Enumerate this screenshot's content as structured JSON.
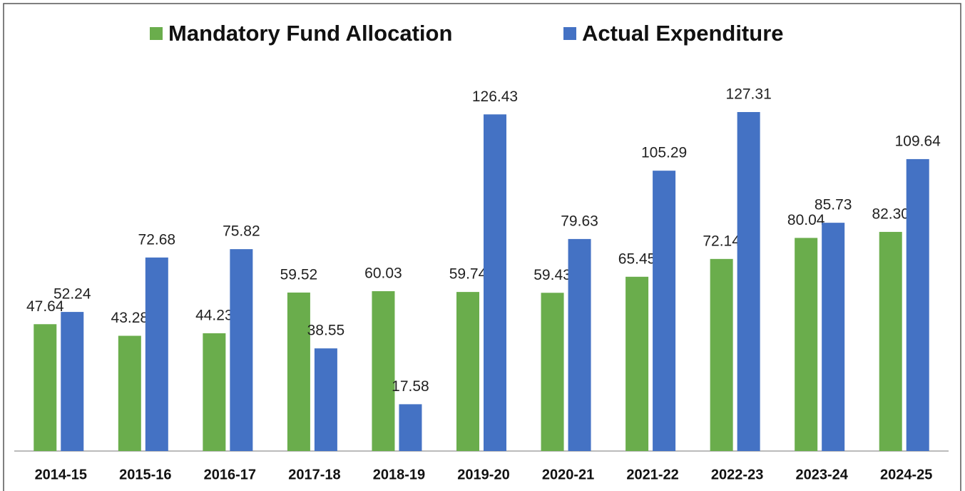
{
  "chart_data": {
    "type": "bar",
    "categories": [
      "2014-15",
      "2015-16",
      "2016-17",
      "2017-18",
      "2018-19",
      "2019-20",
      "2020-21",
      "2021-22",
      "2022-23",
      "2023-24",
      "2024-25"
    ],
    "series": [
      {
        "name": "Mandatory Fund Allocation",
        "color": "#6aad4c",
        "values": [
          47.64,
          43.28,
          44.23,
          59.52,
          60.03,
          59.74,
          59.43,
          65.45,
          72.14,
          80.04,
          82.3
        ],
        "value_labels": [
          "47.64",
          "43.28",
          "44.23",
          "59.52",
          "60.03",
          "59.74",
          "59.43",
          "65.45",
          "72.14",
          "80.04",
          "82.30"
        ]
      },
      {
        "name": "Actual Expenditure",
        "color": "#4472c4",
        "values": [
          52.24,
          72.68,
          75.82,
          38.55,
          17.58,
          126.43,
          79.63,
          105.29,
          127.31,
          85.73,
          109.64
        ]
      }
    ],
    "legend": "top"
  }
}
